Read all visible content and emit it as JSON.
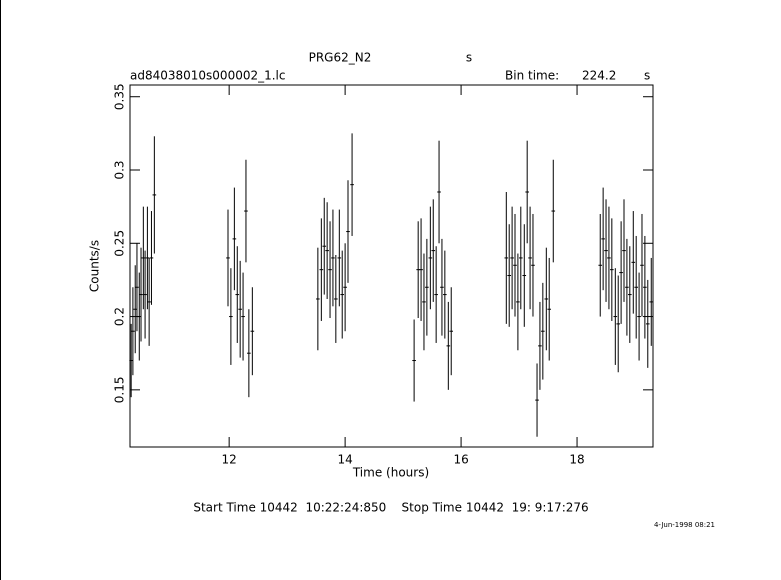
{
  "chart_data": {
    "type": "errorbar",
    "title": "PRG62_N2",
    "title_unit": "s",
    "file_label": "ad84038010s000002_1.lc",
    "bin_time_label": "Bin time:",
    "bin_time": 224.2,
    "bin_time_unit": "s",
    "xlabel": "Time (hours)",
    "ylabel": "Counts/s",
    "footer": "Start Time 10442  10:22:24:850    Stop Time 10442  19: 9:17:276",
    "date": "4-Jun-1998 08:21",
    "color": "#000000",
    "xlim": [
      10.29,
      19.31
    ],
    "ylim": [
      0.111,
      0.358
    ],
    "xticks": [
      12,
      14,
      16,
      18
    ],
    "yticks": [
      0.15,
      0.2,
      0.25,
      0.3,
      0.35
    ],
    "x": [
      10.31,
      10.34,
      10.38,
      10.41,
      10.45,
      10.48,
      10.52,
      10.55,
      10.59,
      10.62,
      10.66,
      10.71,
      11.98,
      12.03,
      12.09,
      12.14,
      12.19,
      12.24,
      12.29,
      12.34,
      12.4,
      13.53,
      13.59,
      13.64,
      13.69,
      13.74,
      13.79,
      13.84,
      13.9,
      13.95,
      14.0,
      14.05,
      14.12,
      15.19,
      15.26,
      15.31,
      15.36,
      15.41,
      15.47,
      15.52,
      15.57,
      15.62,
      15.67,
      15.72,
      15.78,
      15.83,
      16.78,
      16.83,
      16.88,
      16.93,
      16.98,
      17.03,
      17.09,
      17.14,
      17.19,
      17.24,
      17.31,
      17.36,
      17.41,
      17.47,
      17.52,
      17.59,
      18.4,
      18.45,
      18.5,
      18.55,
      18.6,
      18.66,
      18.71,
      18.76,
      18.81,
      18.86,
      18.91,
      18.97,
      19.02,
      19.07,
      19.12,
      19.17,
      19.22,
      19.28
    ],
    "values": [
      0.17,
      0.19,
      0.205,
      0.22,
      0.2,
      0.215,
      0.24,
      0.215,
      0.24,
      0.21,
      0.24,
      0.283,
      0.24,
      0.2,
      0.253,
      0.215,
      0.205,
      0.2,
      0.272,
      0.175,
      0.19,
      0.212,
      0.232,
      0.248,
      0.245,
      0.232,
      0.24,
      0.212,
      0.24,
      0.215,
      0.22,
      0.258,
      0.29,
      0.17,
      0.232,
      0.232,
      0.21,
      0.22,
      0.24,
      0.245,
      0.215,
      0.285,
      0.22,
      0.215,
      0.18,
      0.19,
      0.24,
      0.228,
      0.24,
      0.235,
      0.21,
      0.24,
      0.228,
      0.285,
      0.24,
      0.235,
      0.143,
      0.18,
      0.19,
      0.212,
      0.205,
      0.272,
      0.235,
      0.253,
      0.245,
      0.24,
      0.232,
      0.2,
      0.195,
      0.23,
      0.245,
      0.22,
      0.215,
      0.237,
      0.22,
      0.2,
      0.235,
      0.22,
      0.195,
      0.21
    ],
    "errors": [
      0.025,
      0.03,
      0.03,
      0.03,
      0.03,
      0.032,
      0.035,
      0.03,
      0.035,
      0.03,
      0.032,
      0.04,
      0.033,
      0.033,
      0.035,
      0.033,
      0.033,
      0.03,
      0.035,
      0.03,
      0.03,
      0.035,
      0.035,
      0.033,
      0.033,
      0.033,
      0.033,
      0.03,
      0.033,
      0.03,
      0.03,
      0.035,
      0.035,
      0.028,
      0.033,
      0.035,
      0.033,
      0.033,
      0.035,
      0.035,
      0.033,
      0.035,
      0.033,
      0.03,
      0.03,
      0.03,
      0.045,
      0.035,
      0.035,
      0.035,
      0.033,
      0.035,
      0.035,
      0.035,
      0.035,
      0.035,
      0.025,
      0.03,
      0.033,
      0.035,
      0.035,
      0.035,
      0.035,
      0.035,
      0.035,
      0.035,
      0.035,
      0.033,
      0.033,
      0.035,
      0.035,
      0.033,
      0.033,
      0.035,
      0.035,
      0.03,
      0.035,
      0.035,
      0.03,
      0.03
    ]
  }
}
